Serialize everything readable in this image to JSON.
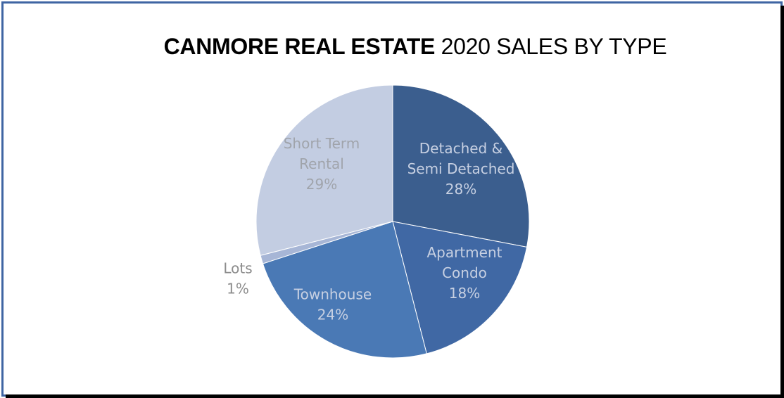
{
  "chart_data": {
    "type": "pie",
    "title": {
      "bold": "CANMORE REAL ESTATE",
      "normal": "2020 SALES BY TYPE"
    },
    "slices": [
      {
        "label_lines": [
          "Detached &",
          "Semi Detached"
        ],
        "percent_label": "28%",
        "value": 28,
        "color": "#3b5e8e",
        "text_color": "#c7d0e2"
      },
      {
        "label_lines": [
          "Apartment",
          "Condo"
        ],
        "percent_label": "18%",
        "value": 18,
        "color": "#4068a4",
        "text_color": "#c7d0e2"
      },
      {
        "label_lines": [
          "Townhouse"
        ],
        "percent_label": "24%",
        "value": 24,
        "color": "#4a79b5",
        "text_color": "#c7d0e2"
      },
      {
        "label_lines": [
          "Lots"
        ],
        "percent_label": "1%",
        "value": 1,
        "color": "#a7b6d6",
        "text_color": "#8c8c8c",
        "label_outside": true
      },
      {
        "label_lines": [
          "Short Term",
          "Rental"
        ],
        "percent_label": "29%",
        "value": 29,
        "color": "#c3cde2",
        "text_color": "#a0a4ab"
      }
    ]
  }
}
